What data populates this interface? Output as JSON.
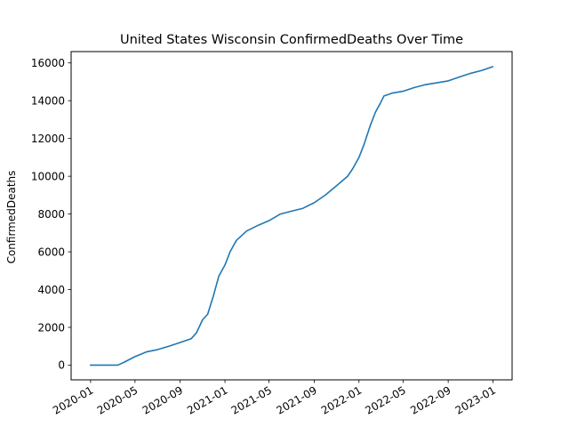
{
  "chart_data": {
    "type": "line",
    "title": "United States Wisconsin ConfirmedDeaths Over Time",
    "xlabel": "",
    "ylabel": "ConfirmedDeaths",
    "x_is_date": true,
    "xlim": [
      "2019-11-09",
      "2023-02-22"
    ],
    "ylim": [
      -780,
      16600
    ],
    "x_ticks": [
      "2020-01",
      "2020-05",
      "2020-09",
      "2021-01",
      "2021-05",
      "2021-09",
      "2022-01",
      "2022-05",
      "2022-09",
      "2023-01"
    ],
    "y_ticks": [
      0,
      2000,
      4000,
      6000,
      8000,
      10000,
      12000,
      14000,
      16000
    ],
    "grid": false,
    "line_color": "#1f77b4",
    "series": [
      {
        "x": [
          "2020-01-01",
          "2020-03-15",
          "2020-04-01",
          "2020-05-01",
          "2020-06-01",
          "2020-07-01",
          "2020-08-01",
          "2020-09-01",
          "2020-10-01",
          "2020-10-15",
          "2020-11-01",
          "2020-11-15",
          "2020-12-01",
          "2020-12-15",
          "2021-01-01",
          "2021-01-15",
          "2021-02-01",
          "2021-03-01",
          "2021-04-01",
          "2021-05-01",
          "2021-06-01",
          "2021-07-01",
          "2021-08-01",
          "2021-09-01",
          "2021-10-01",
          "2021-11-01",
          "2021-12-01",
          "2021-12-15",
          "2022-01-01",
          "2022-01-15",
          "2022-02-01",
          "2022-02-15",
          "2022-03-01",
          "2022-03-10",
          "2022-04-01",
          "2022-05-01",
          "2022-06-01",
          "2022-07-01",
          "2022-08-01",
          "2022-09-01",
          "2022-10-01",
          "2022-11-01",
          "2022-12-01",
          "2022-12-31"
        ],
        "values": [
          0,
          0,
          150,
          450,
          700,
          820,
          1000,
          1200,
          1400,
          1700,
          2400,
          2700,
          3700,
          4700,
          5300,
          6000,
          6600,
          7100,
          7400,
          7650,
          8000,
          8150,
          8300,
          8600,
          9000,
          9500,
          10000,
          10400,
          11000,
          11700,
          12700,
          13400,
          13900,
          14250,
          14400,
          14500,
          14700,
          14850,
          14950,
          15050,
          15250,
          15450,
          15600,
          15800
        ]
      }
    ]
  }
}
